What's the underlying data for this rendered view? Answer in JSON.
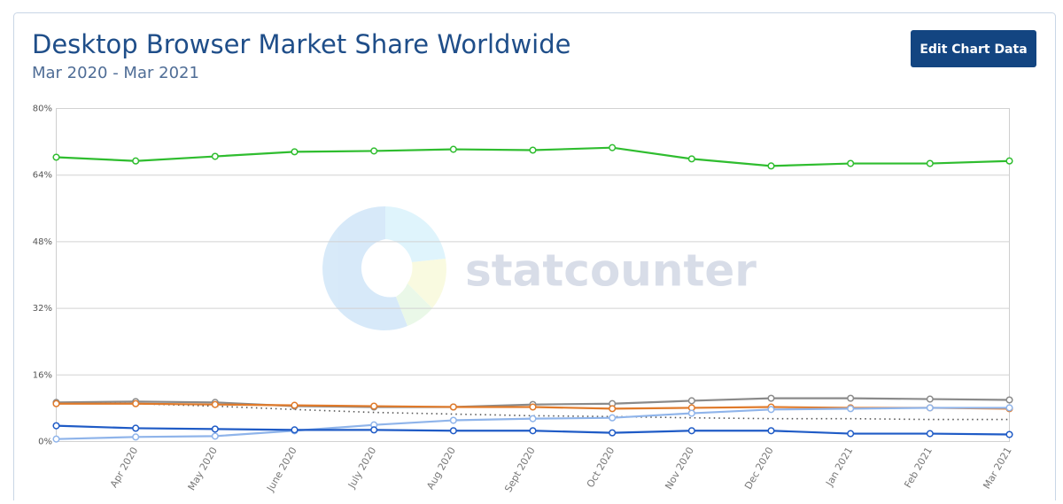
{
  "button": "Edit Chart Data",
  "chart_data": {
    "type": "line",
    "title": "Desktop Browser Market Share Worldwide",
    "subtitle": "Mar 2020 - Mar 2021",
    "watermark": "statcounter",
    "categories": [
      null,
      "Apr 2020",
      "May 2020",
      "June 2020",
      "July 2020",
      "Aug 2020",
      "Sept 2020",
      "Oct 2020",
      "Nov 2020",
      "Dec 2020",
      "Jan 2021",
      "Feb 2021",
      "Mar 2021"
    ],
    "ylim": [
      0,
      80
    ],
    "yticks": [
      {
        "value": 0,
        "label": "0%"
      },
      {
        "value": 16,
        "label": "16%"
      },
      {
        "value": 32,
        "label": "32%"
      },
      {
        "value": 48,
        "label": "48%"
      },
      {
        "value": 64,
        "label": "64%"
      },
      {
        "value": 80,
        "label": "80%"
      }
    ],
    "grid": true,
    "series": [
      {
        "color": "#2fbd2f",
        "values": [
          68.3,
          67.4,
          68.5,
          69.6,
          69.8,
          70.2,
          70.0,
          70.6,
          67.9,
          66.2,
          66.8,
          66.8,
          67.4
        ]
      },
      {
        "color": "#555555",
        "line_style": "dotted",
        "markers": false,
        "values": [
          9.4,
          9.1,
          8.5,
          7.7,
          7.0,
          6.6,
          6.2,
          6.0,
          5.7,
          5.5,
          5.5,
          5.3,
          5.3
        ]
      },
      {
        "color": "#8a8a8a",
        "values": [
          9.4,
          9.6,
          9.4,
          8.5,
          8.3,
          8.3,
          8.9,
          9.1,
          9.8,
          10.4,
          10.4,
          10.2,
          10.0
        ]
      },
      {
        "color": "#e07a2a",
        "values": [
          9.1,
          9.1,
          8.9,
          8.7,
          8.5,
          8.3,
          8.3,
          7.9,
          8.1,
          8.3,
          8.1,
          8.1,
          7.9
        ]
      },
      {
        "color": "#8fb4ea",
        "values": [
          0.6,
          1.1,
          1.3,
          2.6,
          4.0,
          5.1,
          5.5,
          5.7,
          6.8,
          7.7,
          7.9,
          8.1,
          8.1
        ]
      },
      {
        "color": "#1f5bc6",
        "values": [
          3.8,
          3.2,
          3.0,
          2.8,
          2.8,
          2.6,
          2.6,
          2.1,
          2.6,
          2.6,
          1.9,
          1.9,
          1.7
        ]
      }
    ]
  }
}
